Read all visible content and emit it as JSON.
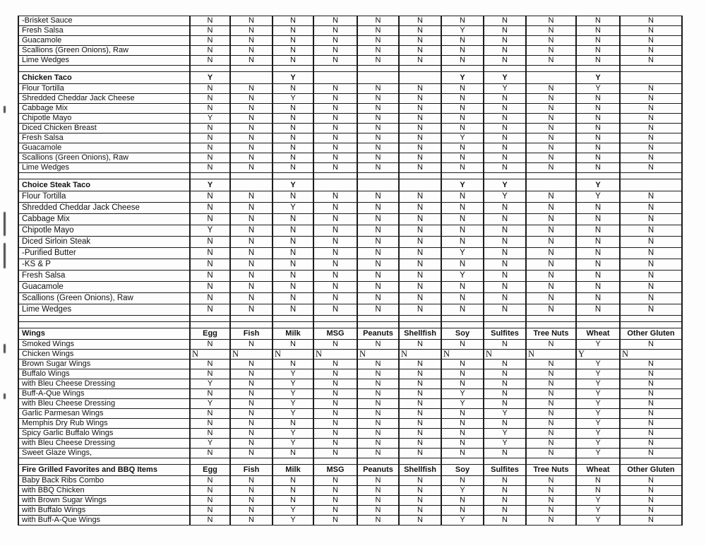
{
  "table": {
    "allergen_columns": [
      "Egg",
      "Fish",
      "Milk",
      "MSG",
      "Peanuts",
      "Shellfish",
      "Soy",
      "Sulfites",
      "Tree Nuts",
      "Wheat",
      "Other Gluten"
    ],
    "sections": [
      {
        "id": "condiments-continuation",
        "type": "plain",
        "gap_rows_before": 0,
        "rows": [
          {
            "label": "-Brisket Sauce",
            "values": [
              "N",
              "N",
              "N",
              "N",
              "N",
              "N",
              "N",
              "N",
              "N",
              "N",
              "N"
            ]
          },
          {
            "label": "Fresh Salsa",
            "values": [
              "N",
              "N",
              "N",
              "N",
              "N",
              "N",
              "Y",
              "N",
              "N",
              "N",
              "N"
            ]
          },
          {
            "label": "Guacamole",
            "values": [
              "N",
              "N",
              "N",
              "N",
              "N",
              "N",
              "N",
              "N",
              "N",
              "N",
              "N"
            ]
          },
          {
            "label": "Scallions (Green Onions), Raw",
            "values": [
              "N",
              "N",
              "N",
              "N",
              "N",
              "N",
              "N",
              "N",
              "N",
              "N",
              "N"
            ]
          },
          {
            "label": "Lime Wedges",
            "values": [
              "N",
              "N",
              "N",
              "N",
              "N",
              "N",
              "N",
              "N",
              "N",
              "N",
              "N"
            ]
          }
        ]
      },
      {
        "id": "chicken-taco",
        "type": "title",
        "title": "Chicken Taco",
        "title_values": [
          "Y",
          "",
          "Y",
          "",
          "",
          "",
          "Y",
          "Y",
          "",
          "Y",
          ""
        ],
        "gap_rows_before": 1,
        "rows": [
          {
            "label": "Flour Tortilla",
            "values": [
              "N",
              "N",
              "N",
              "N",
              "N",
              "N",
              "N",
              "Y",
              "N",
              "Y",
              "N"
            ]
          },
          {
            "label": "Shredded Cheddar Jack Cheese",
            "values": [
              "N",
              "N",
              "Y",
              "N",
              "N",
              "N",
              "N",
              "N",
              "N",
              "N",
              "N"
            ]
          },
          {
            "label": "Cabbage Mix",
            "values": [
              "N",
              "N",
              "N",
              "N",
              "N",
              "N",
              "N",
              "N",
              "N",
              "N",
              "N"
            ]
          },
          {
            "label": "Chipotle Mayo",
            "values": [
              "Y",
              "N",
              "N",
              "N",
              "N",
              "N",
              "N",
              "N",
              "N",
              "N",
              "N"
            ]
          },
          {
            "label": "Diced Chicken Breast",
            "values": [
              "N",
              "N",
              "N",
              "N",
              "N",
              "N",
              "N",
              "N",
              "N",
              "N",
              "N"
            ]
          },
          {
            "label": "Fresh Salsa",
            "values": [
              "N",
              "N",
              "N",
              "N",
              "N",
              "N",
              "Y",
              "N",
              "N",
              "N",
              "N"
            ]
          },
          {
            "label": "Guacamole",
            "values": [
              "N",
              "N",
              "N",
              "N",
              "N",
              "N",
              "N",
              "N",
              "N",
              "N",
              "N"
            ]
          },
          {
            "label": "Scallions (Green Onions), Raw",
            "values": [
              "N",
              "N",
              "N",
              "N",
              "N",
              "N",
              "N",
              "N",
              "N",
              "N",
              "N"
            ]
          },
          {
            "label": "Lime Wedges",
            "values": [
              "N",
              "N",
              "N",
              "N",
              "N",
              "N",
              "N",
              "N",
              "N",
              "N",
              "N"
            ]
          }
        ]
      },
      {
        "id": "choice-steak-taco",
        "type": "title",
        "title": "Choice Steak Taco",
        "title_values": [
          "Y",
          "",
          "Y",
          "",
          "",
          "",
          "Y",
          "Y",
          "",
          "Y",
          ""
        ],
        "gap_rows_before": 1,
        "row_class": "tall",
        "rows": [
          {
            "label": "Flour Tortilla",
            "values": [
              "N",
              "N",
              "N",
              "N",
              "N",
              "N",
              "N",
              "Y",
              "N",
              "Y",
              "N"
            ]
          },
          {
            "label": "Shredded Cheddar Jack Cheese",
            "values": [
              "N",
              "N",
              "Y",
              "N",
              "N",
              "N",
              "N",
              "N",
              "N",
              "N",
              "N"
            ]
          },
          {
            "label": "Cabbage Mix",
            "values": [
              "N",
              "N",
              "N",
              "N",
              "N",
              "N",
              "N",
              "N",
              "N",
              "N",
              "N"
            ]
          },
          {
            "label": "Chipotle Mayo",
            "values": [
              "Y",
              "N",
              "N",
              "N",
              "N",
              "N",
              "N",
              "N",
              "N",
              "N",
              "N"
            ]
          },
          {
            "label": "Diced Sirloin Steak",
            "values": [
              "N",
              "N",
              "N",
              "N",
              "N",
              "N",
              "N",
              "N",
              "N",
              "N",
              "N"
            ]
          },
          {
            "label": "-Purified Butter",
            "values": [
              "N",
              "N",
              "N",
              "N",
              "N",
              "N",
              "Y",
              "N",
              "N",
              "N",
              "N"
            ]
          },
          {
            "label": "-KS & P",
            "values": [
              "N",
              "N",
              "N",
              "N",
              "N",
              "N",
              "N",
              "N",
              "N",
              "N",
              "N"
            ]
          },
          {
            "label": "Fresh Salsa",
            "values": [
              "N",
              "N",
              "N",
              "N",
              "N",
              "N",
              "Y",
              "N",
              "N",
              "N",
              "N"
            ]
          },
          {
            "label": "Guacamole",
            "values": [
              "N",
              "N",
              "N",
              "N",
              "N",
              "N",
              "N",
              "N",
              "N",
              "N",
              "N"
            ]
          },
          {
            "label": "Scallions (Green Onions), Raw",
            "values": [
              "N",
              "N",
              "N",
              "N",
              "N",
              "N",
              "N",
              "N",
              "N",
              "N",
              "N"
            ]
          },
          {
            "label": "Lime Wedges",
            "values": [
              "N",
              "N",
              "N",
              "N",
              "N",
              "N",
              "N",
              "N",
              "N",
              "N",
              "N"
            ]
          }
        ]
      },
      {
        "id": "wings",
        "type": "header",
        "title": "Wings",
        "gap_rows_before": 2,
        "rows": [
          {
            "label": "Smoked Wings",
            "values": [
              "N",
              "N",
              "N",
              "N",
              "N",
              "N",
              "N",
              "N",
              "N",
              "Y",
              "N"
            ]
          },
          {
            "label": "Chicken Wings",
            "style": "serif-left",
            "values": [
              "N",
              "N",
              "N",
              "N",
              "N",
              "N",
              "N",
              "N",
              "N",
              "Y",
              "N"
            ]
          },
          {
            "label": "Brown Sugar Wings",
            "values": [
              "N",
              "N",
              "N",
              "N",
              "N",
              "N",
              "N",
              "N",
              "N",
              "Y",
              "N"
            ]
          },
          {
            "label": "Buffalo Wings",
            "values": [
              "N",
              "N",
              "Y",
              "N",
              "N",
              "N",
              "N",
              "N",
              "N",
              "Y",
              "N"
            ]
          },
          {
            "label": "with Bleu Cheese Dressing",
            "values": [
              "Y",
              "N",
              "Y",
              "N",
              "N",
              "N",
              "N",
              "N",
              "N",
              "Y",
              "N"
            ]
          },
          {
            "label": "Buff-A-Que Wings",
            "values": [
              "N",
              "N",
              "Y",
              "N",
              "N",
              "N",
              "Y",
              "N",
              "N",
              "Y",
              "N"
            ]
          },
          {
            "label": "with Bleu Cheese Dressing",
            "values": [
              "Y",
              "N",
              "Y",
              "N",
              "N",
              "N",
              "Y",
              "N",
              "N",
              "Y",
              "N"
            ]
          },
          {
            "label": "Garlic Parmesan Wings",
            "values": [
              "N",
              "N",
              "Y",
              "N",
              "N",
              "N",
              "N",
              "Y",
              "N",
              "Y",
              "N"
            ]
          },
          {
            "label": "Memphis Dry Rub Wings",
            "values": [
              "N",
              "N",
              "N",
              "N",
              "N",
              "N",
              "N",
              "N",
              "N",
              "Y",
              "N"
            ]
          },
          {
            "label": "Spicy Garlic Buffalo Wings",
            "values": [
              "N",
              "N",
              "Y",
              "N",
              "N",
              "N",
              "N",
              "Y",
              "N",
              "Y",
              "N"
            ]
          },
          {
            "label": "with Bleu Cheese Dressing",
            "values": [
              "Y",
              "N",
              "Y",
              "N",
              "N",
              "N",
              "N",
              "Y",
              "N",
              "Y",
              "N"
            ]
          },
          {
            "label": "Sweet Glaze Wings,",
            "values": [
              "N",
              "N",
              "N",
              "N",
              "N",
              "N",
              "N",
              "N",
              "N",
              "Y",
              "N"
            ]
          }
        ]
      },
      {
        "id": "fire-grilled-favorites",
        "type": "header",
        "title": "Fire Grilled Favorites and BBQ Items",
        "gap_rows_before": 1,
        "rows": [
          {
            "label": "Baby Back Ribs Combo",
            "values": [
              "N",
              "N",
              "N",
              "N",
              "N",
              "N",
              "N",
              "N",
              "N",
              "N",
              "N"
            ]
          },
          {
            "label": "with BBQ Chicken",
            "values": [
              "N",
              "N",
              "N",
              "N",
              "N",
              "N",
              "Y",
              "N",
              "N",
              "N",
              "N"
            ]
          },
          {
            "label": "with Brown Sugar Wings",
            "values": [
              "N",
              "N",
              "N",
              "N",
              "N",
              "N",
              "N",
              "N",
              "N",
              "Y",
              "N"
            ]
          },
          {
            "label": "with Buffalo Wings",
            "values": [
              "N",
              "N",
              "Y",
              "N",
              "N",
              "N",
              "N",
              "N",
              "N",
              "Y",
              "N"
            ]
          },
          {
            "label": "with Buff-A-Que Wings",
            "values": [
              "N",
              "N",
              "Y",
              "N",
              "N",
              "N",
              "Y",
              "N",
              "N",
              "Y",
              "N"
            ]
          }
        ]
      }
    ]
  }
}
